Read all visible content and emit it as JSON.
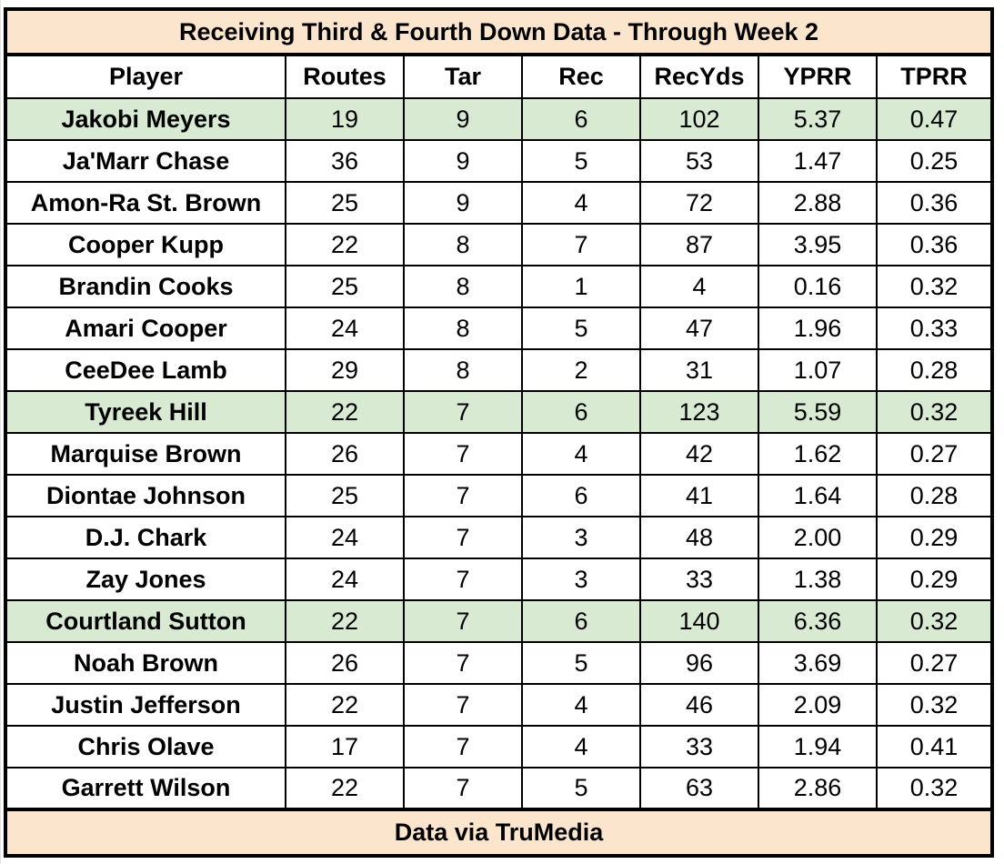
{
  "title": "Receiving Third & Fourth Down Data - Through Week 2",
  "columns": [
    "Player",
    "Routes",
    "Tar",
    "Rec",
    "RecYds",
    "YPRR",
    "TPRR"
  ],
  "highlight_color": "#d9ead3",
  "header_color": "#fce5cd",
  "rows": [
    {
      "player": "Jakobi Meyers",
      "routes": "19",
      "tar": "9",
      "rec": "6",
      "recyds": "102",
      "yprr": "5.37",
      "tprr": "0.47",
      "highlight": true
    },
    {
      "player": "Ja'Marr Chase",
      "routes": "36",
      "tar": "9",
      "rec": "5",
      "recyds": "53",
      "yprr": "1.47",
      "tprr": "0.25",
      "highlight": false
    },
    {
      "player": "Amon-Ra St. Brown",
      "routes": "25",
      "tar": "9",
      "rec": "4",
      "recyds": "72",
      "yprr": "2.88",
      "tprr": "0.36",
      "highlight": false
    },
    {
      "player": "Cooper Kupp",
      "routes": "22",
      "tar": "8",
      "rec": "7",
      "recyds": "87",
      "yprr": "3.95",
      "tprr": "0.36",
      "highlight": false
    },
    {
      "player": "Brandin Cooks",
      "routes": "25",
      "tar": "8",
      "rec": "1",
      "recyds": "4",
      "yprr": "0.16",
      "tprr": "0.32",
      "highlight": false
    },
    {
      "player": "Amari Cooper",
      "routes": "24",
      "tar": "8",
      "rec": "5",
      "recyds": "47",
      "yprr": "1.96",
      "tprr": "0.33",
      "highlight": false
    },
    {
      "player": "CeeDee Lamb",
      "routes": "29",
      "tar": "8",
      "rec": "2",
      "recyds": "31",
      "yprr": "1.07",
      "tprr": "0.28",
      "highlight": false
    },
    {
      "player": "Tyreek Hill",
      "routes": "22",
      "tar": "7",
      "rec": "6",
      "recyds": "123",
      "yprr": "5.59",
      "tprr": "0.32",
      "highlight": true
    },
    {
      "player": "Marquise Brown",
      "routes": "26",
      "tar": "7",
      "rec": "4",
      "recyds": "42",
      "yprr": "1.62",
      "tprr": "0.27",
      "highlight": false
    },
    {
      "player": "Diontae Johnson",
      "routes": "25",
      "tar": "7",
      "rec": "6",
      "recyds": "41",
      "yprr": "1.64",
      "tprr": "0.28",
      "highlight": false
    },
    {
      "player": "D.J. Chark",
      "routes": "24",
      "tar": "7",
      "rec": "3",
      "recyds": "48",
      "yprr": "2.00",
      "tprr": "0.29",
      "highlight": false
    },
    {
      "player": "Zay Jones",
      "routes": "24",
      "tar": "7",
      "rec": "3",
      "recyds": "33",
      "yprr": "1.38",
      "tprr": "0.29",
      "highlight": false
    },
    {
      "player": "Courtland Sutton",
      "routes": "22",
      "tar": "7",
      "rec": "6",
      "recyds": "140",
      "yprr": "6.36",
      "tprr": "0.32",
      "highlight": true
    },
    {
      "player": "Noah Brown",
      "routes": "26",
      "tar": "7",
      "rec": "5",
      "recyds": "96",
      "yprr": "3.69",
      "tprr": "0.27",
      "highlight": false
    },
    {
      "player": "Justin Jefferson",
      "routes": "22",
      "tar": "7",
      "rec": "4",
      "recyds": "46",
      "yprr": "2.09",
      "tprr": "0.32",
      "highlight": false
    },
    {
      "player": "Chris Olave",
      "routes": "17",
      "tar": "7",
      "rec": "4",
      "recyds": "33",
      "yprr": "1.94",
      "tprr": "0.41",
      "highlight": false
    },
    {
      "player": "Garrett Wilson",
      "routes": "22",
      "tar": "7",
      "rec": "5",
      "recyds": "63",
      "yprr": "2.86",
      "tprr": "0.32",
      "highlight": false
    }
  ],
  "footer": "Data via TruMedia"
}
